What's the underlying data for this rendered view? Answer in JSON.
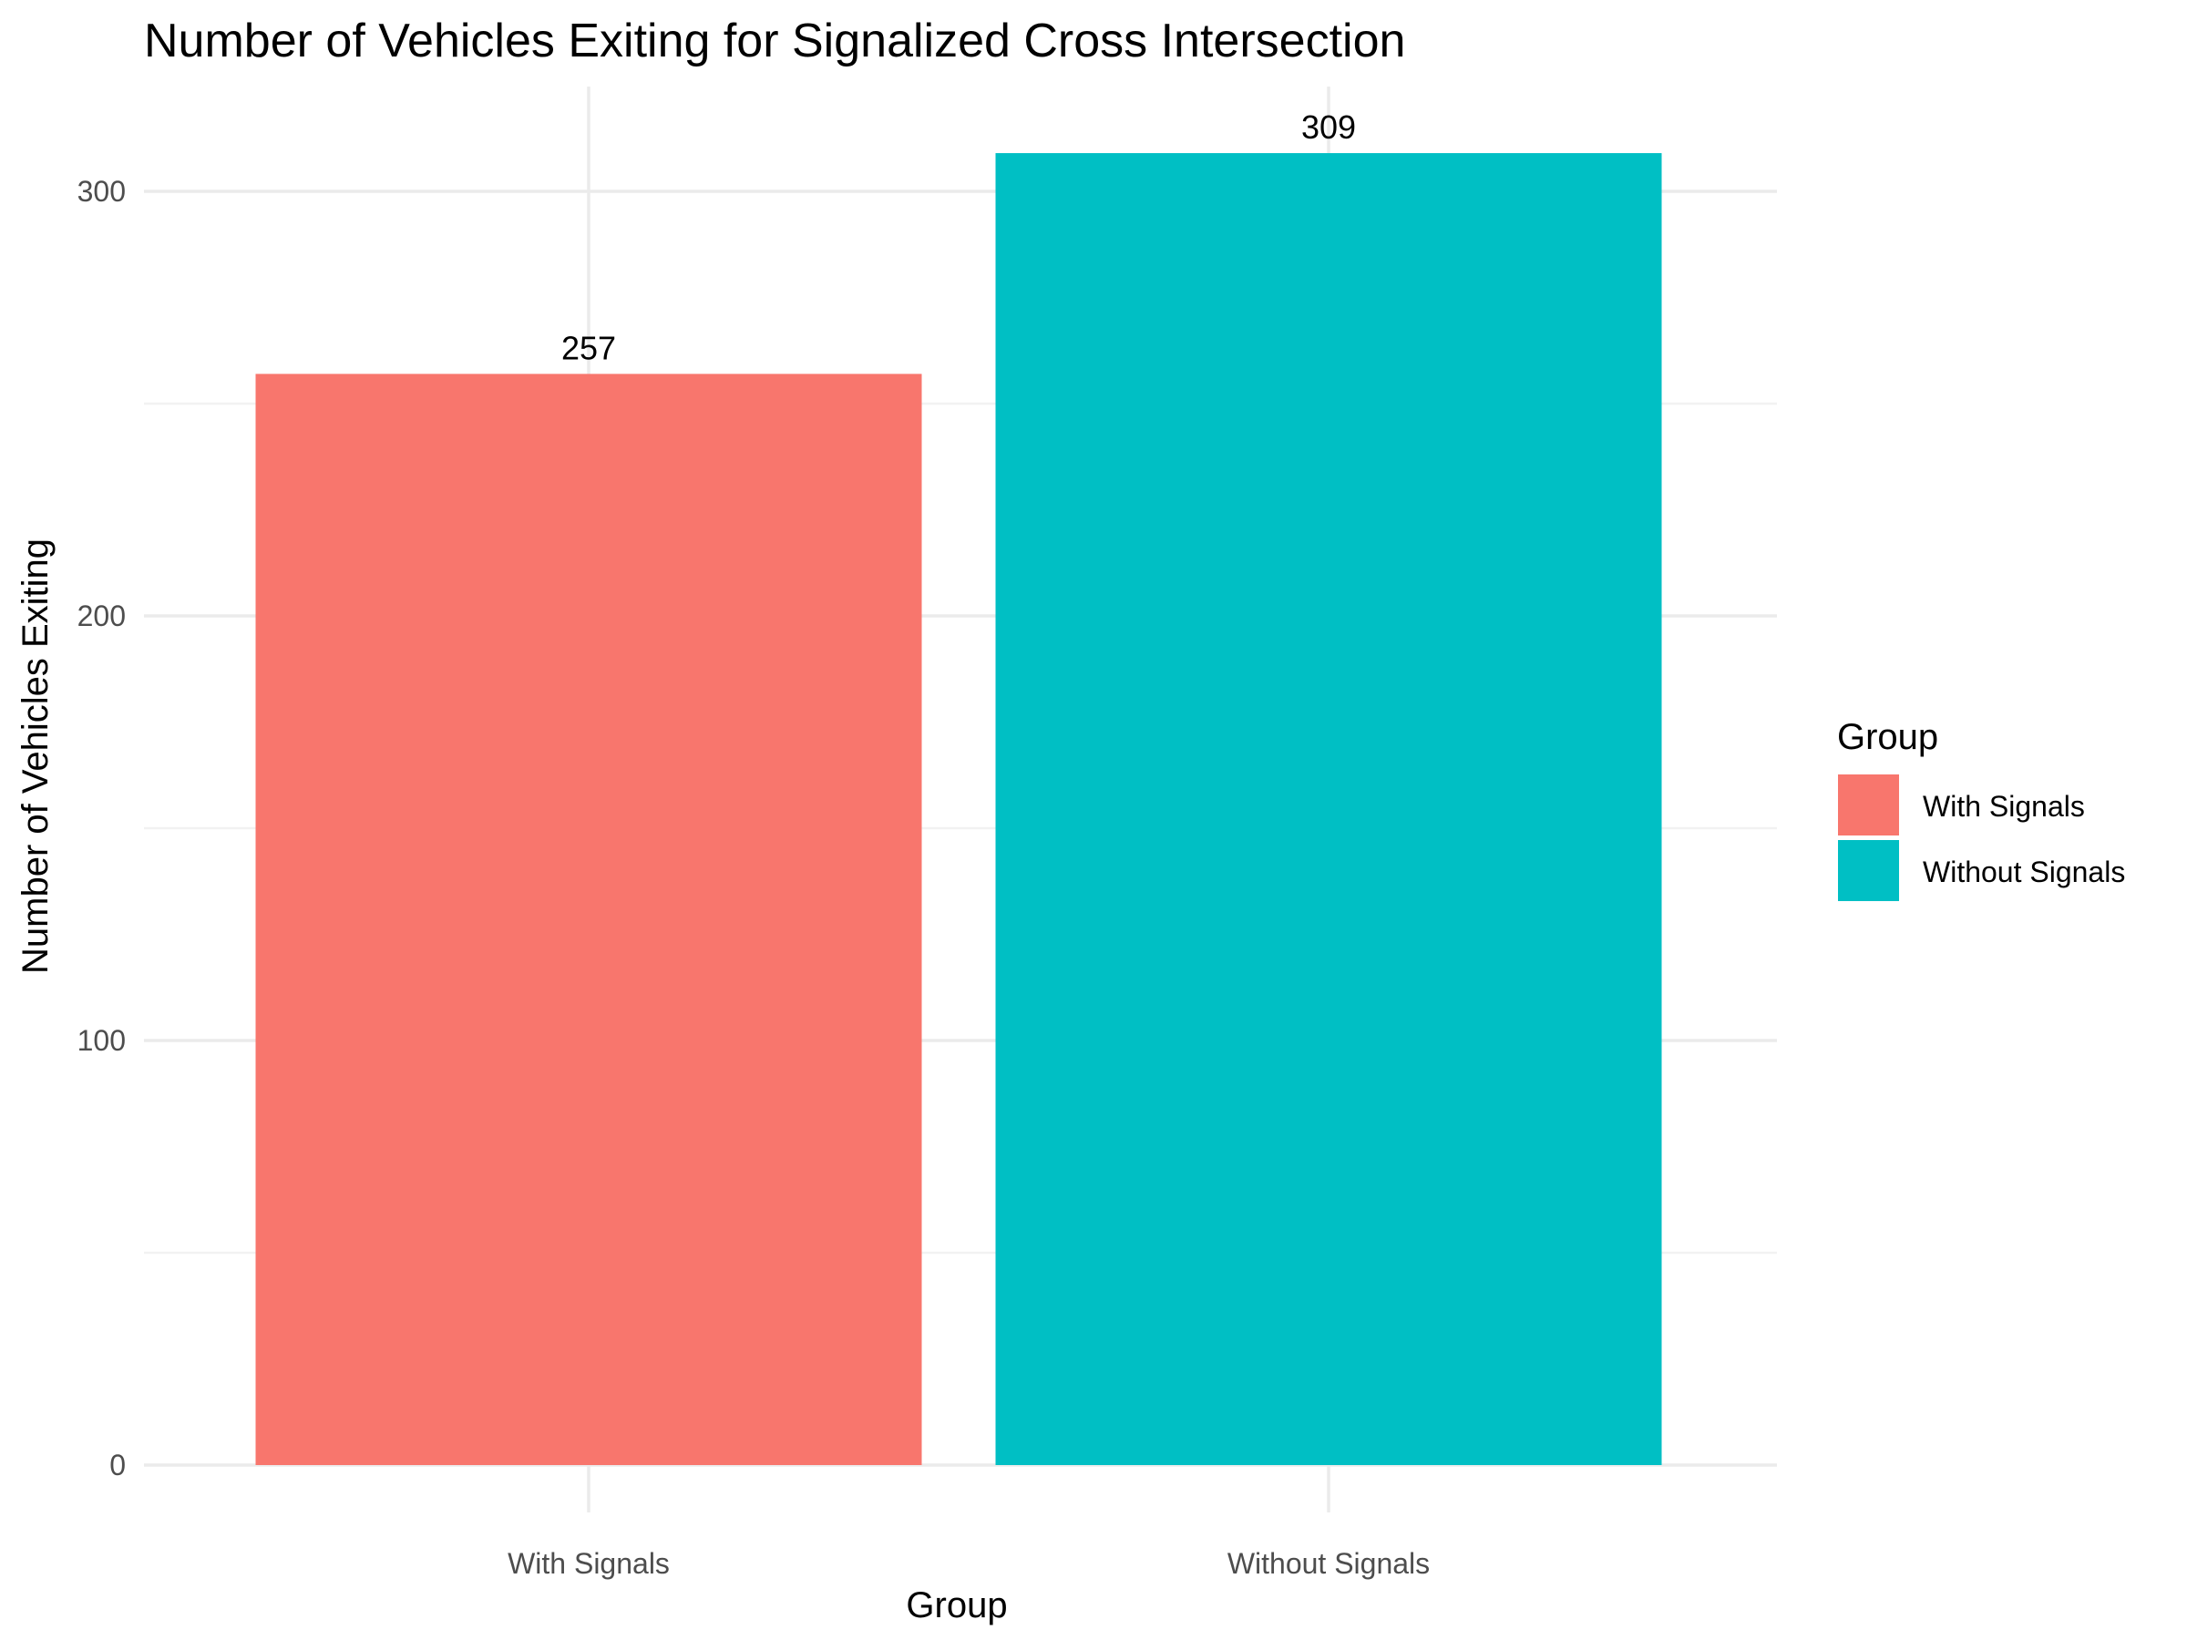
{
  "chart_data": {
    "type": "bar",
    "title": "Number of Vehicles Exiting for Signalized Cross Intersection",
    "xlabel": "Group",
    "ylabel": "Number of Vehicles Exiting",
    "categories": [
      "With Signals",
      "Without Signals"
    ],
    "values": [
      257,
      309
    ],
    "data_labels": [
      "257",
      "309"
    ],
    "colors": [
      "#F8766D",
      "#00BFC4"
    ],
    "ylim": [
      0,
      325
    ],
    "y_ticks": [
      0,
      100,
      200,
      300
    ],
    "y_tick_labels": [
      "0",
      "100",
      "200",
      "300"
    ],
    "y_minor_ticks": [
      50,
      150,
      250
    ],
    "grid": true,
    "legend": {
      "title": "Group",
      "position": "right",
      "items": [
        {
          "label": "With Signals",
          "color": "#F8766D"
        },
        {
          "label": "Without Signals",
          "color": "#00BFC4"
        }
      ]
    }
  }
}
